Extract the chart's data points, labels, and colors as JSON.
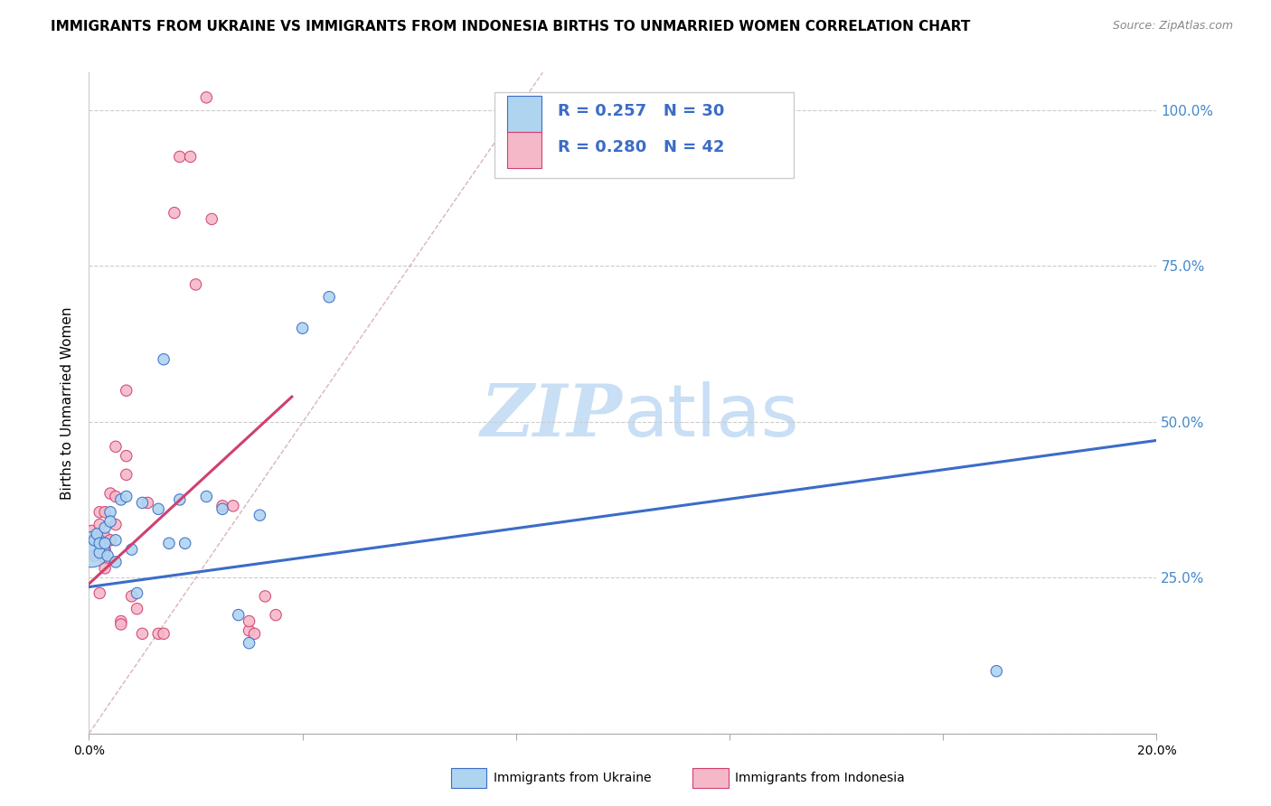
{
  "title": "IMMIGRANTS FROM UKRAINE VS IMMIGRANTS FROM INDONESIA BIRTHS TO UNMARRIED WOMEN CORRELATION CHART",
  "source": "Source: ZipAtlas.com",
  "xlabel_blue": "Immigrants from Ukraine",
  "xlabel_pink": "Immigrants from Indonesia",
  "ylabel": "Births to Unmarried Women",
  "R_blue": 0.257,
  "N_blue": 30,
  "R_pink": 0.28,
  "N_pink": 42,
  "blue_color": "#AED4F0",
  "pink_color": "#F5B8C8",
  "trend_blue": "#3B6CC8",
  "trend_pink": "#D04070",
  "diag_color": "#D0A0B0",
  "watermark_color": "#C8DFF5",
  "right_axis_color": "#4488CC",
  "xmin": 0.0,
  "xmax": 0.2,
  "ymin": 0.0,
  "ymax": 1.06,
  "blue_x": [
    0.0005,
    0.001,
    0.0015,
    0.002,
    0.002,
    0.003,
    0.003,
    0.0035,
    0.004,
    0.004,
    0.005,
    0.005,
    0.006,
    0.007,
    0.008,
    0.009,
    0.01,
    0.013,
    0.014,
    0.015,
    0.017,
    0.018,
    0.022,
    0.025,
    0.028,
    0.03,
    0.032,
    0.04,
    0.045,
    0.17
  ],
  "blue_y": [
    0.295,
    0.31,
    0.32,
    0.29,
    0.305,
    0.33,
    0.305,
    0.285,
    0.355,
    0.34,
    0.275,
    0.31,
    0.375,
    0.38,
    0.295,
    0.225,
    0.37,
    0.36,
    0.6,
    0.305,
    0.375,
    0.305,
    0.38,
    0.36,
    0.19,
    0.145,
    0.35,
    0.65,
    0.7,
    0.1
  ],
  "blue_sizes": [
    800,
    80,
    80,
    80,
    80,
    80,
    80,
    80,
    80,
    80,
    80,
    80,
    80,
    80,
    80,
    80,
    80,
    80,
    80,
    80,
    80,
    80,
    80,
    80,
    80,
    80,
    80,
    80,
    80,
    80
  ],
  "pink_x": [
    0.0005,
    0.001,
    0.001,
    0.002,
    0.002,
    0.002,
    0.002,
    0.003,
    0.003,
    0.003,
    0.003,
    0.003,
    0.003,
    0.004,
    0.004,
    0.005,
    0.005,
    0.005,
    0.006,
    0.006,
    0.007,
    0.007,
    0.007,
    0.008,
    0.009,
    0.01,
    0.011,
    0.013,
    0.014,
    0.016,
    0.017,
    0.019,
    0.02,
    0.022,
    0.023,
    0.025,
    0.027,
    0.03,
    0.03,
    0.031,
    0.033,
    0.035
  ],
  "pink_y": [
    0.325,
    0.31,
    0.285,
    0.355,
    0.335,
    0.305,
    0.225,
    0.355,
    0.315,
    0.305,
    0.295,
    0.28,
    0.265,
    0.385,
    0.31,
    0.46,
    0.38,
    0.335,
    0.18,
    0.175,
    0.55,
    0.445,
    0.415,
    0.22,
    0.2,
    0.16,
    0.37,
    0.16,
    0.16,
    0.835,
    0.925,
    0.925,
    0.72,
    1.02,
    0.825,
    0.365,
    0.365,
    0.165,
    0.18,
    0.16,
    0.22,
    0.19
  ],
  "pink_sizes": [
    80,
    80,
    80,
    80,
    80,
    80,
    80,
    80,
    80,
    80,
    80,
    80,
    80,
    80,
    80,
    80,
    80,
    80,
    80,
    80,
    80,
    80,
    80,
    80,
    80,
    80,
    80,
    80,
    80,
    80,
    80,
    80,
    80,
    80,
    80,
    80,
    80,
    80,
    80,
    80,
    80,
    80
  ],
  "yticks": [
    0.0,
    0.25,
    0.5,
    0.75,
    1.0
  ],
  "ytick_labels": [
    "",
    "25.0%",
    "50.0%",
    "75.0%",
    "100.0%"
  ],
  "xticks": [
    0.0,
    0.04,
    0.08,
    0.12,
    0.16,
    0.2
  ],
  "xtick_labels": [
    "0.0%",
    "",
    "",
    "",
    "",
    "20.0%"
  ],
  "blue_line_x": [
    0.0,
    0.2
  ],
  "blue_line_y": [
    0.235,
    0.47
  ],
  "pink_line_x": [
    0.0,
    0.038
  ],
  "pink_line_y": [
    0.24,
    0.54
  ],
  "diag_line_x": [
    0.0,
    0.085
  ],
  "diag_line_y": [
    0.0,
    1.06
  ]
}
